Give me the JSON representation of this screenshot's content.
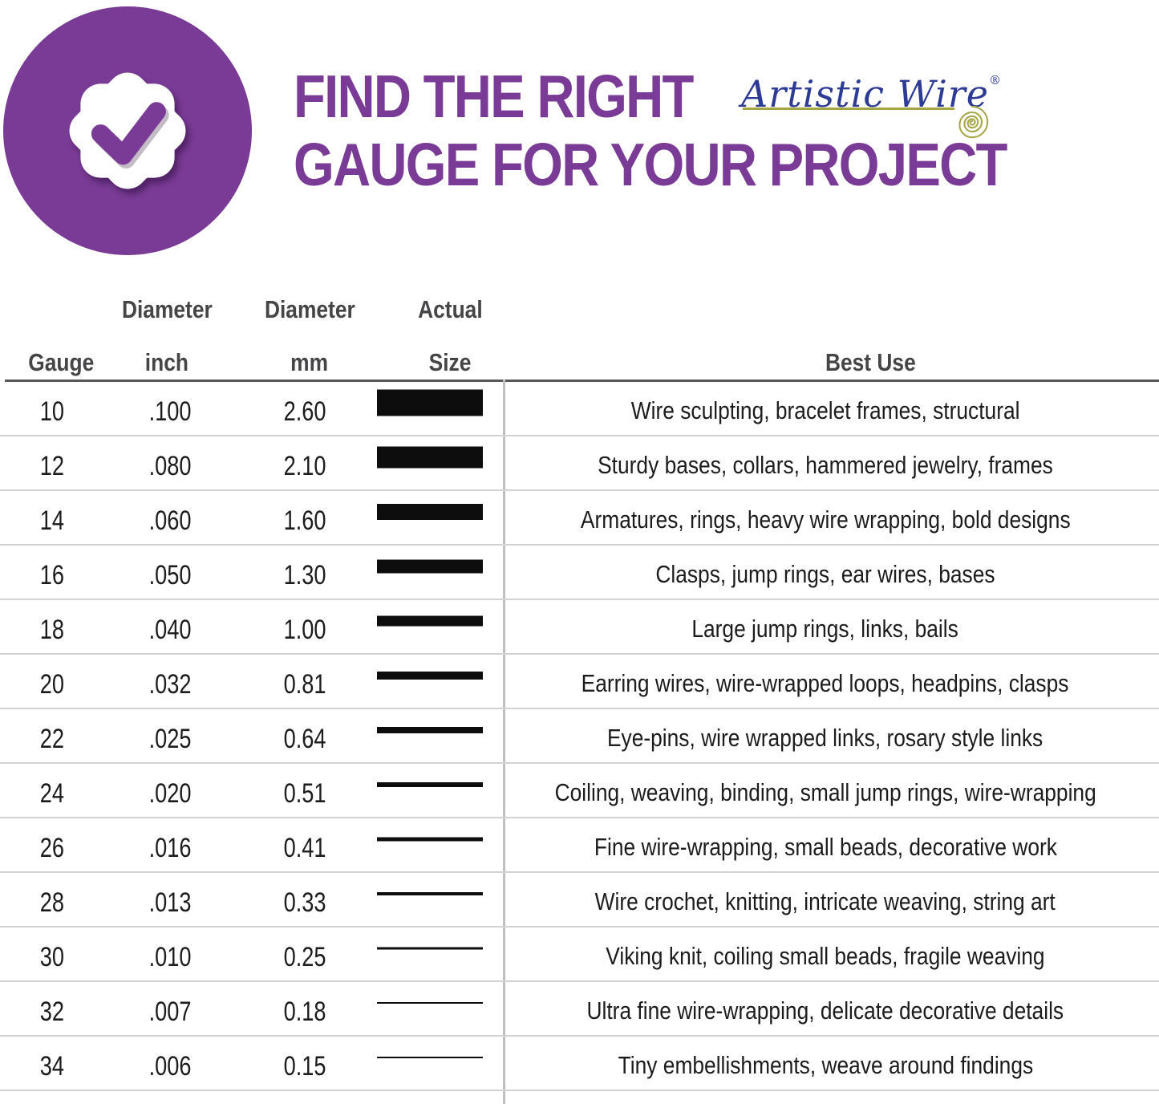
{
  "header": {
    "title_line1": "FIND THE RIGHT",
    "title_line2": "GAUGE FOR YOUR PROJECT",
    "brand": {
      "name": "Artistic Wire",
      "registered_mark": "®"
    },
    "icons": {
      "badge": "verified-checkmark-badge-icon",
      "spiral": "wire-spiral-icon"
    }
  },
  "colors": {
    "purple": "#793b95",
    "brand_blue": "#2e3b94",
    "olive": "#a6a648",
    "ink": "#1c1c1c",
    "head": "#454547",
    "line_dark": "#5a5a5c",
    "line_light": "#d3d3d4",
    "divider": "#bdbfc1",
    "bar": "#0d0d0d"
  },
  "table": {
    "columns": [
      {
        "line1": "",
        "line2": "Gauge"
      },
      {
        "line1": "Diameter",
        "line2": "inch"
      },
      {
        "line1": "Diameter",
        "line2": "mm"
      },
      {
        "line1": "Actual",
        "line2": "Size"
      },
      {
        "line1": "",
        "line2": "Best Use"
      }
    ],
    "rows": [
      {
        "gauge": "10",
        "diameter_inch": ".100",
        "diameter_mm": "2.60",
        "mm_value": 2.6,
        "best_use": "Wire sculpting, bracelet frames, structural"
      },
      {
        "gauge": "12",
        "diameter_inch": ".080",
        "diameter_mm": "2.10",
        "mm_value": 2.1,
        "best_use": "Sturdy bases, collars, hammered jewelry, frames"
      },
      {
        "gauge": "14",
        "diameter_inch": ".060",
        "diameter_mm": "1.60",
        "mm_value": 1.6,
        "best_use": "Armatures, rings, heavy wire wrapping, bold designs"
      },
      {
        "gauge": "16",
        "diameter_inch": ".050",
        "diameter_mm": "1.30",
        "mm_value": 1.3,
        "best_use": "Clasps, jump rings, ear wires, bases"
      },
      {
        "gauge": "18",
        "diameter_inch": ".040",
        "diameter_mm": "1.00",
        "mm_value": 1.0,
        "best_use": "Large jump rings, links, bails"
      },
      {
        "gauge": "20",
        "diameter_inch": ".032",
        "diameter_mm": "0.81",
        "mm_value": 0.81,
        "best_use": "Earring wires, wire-wrapped loops, headpins, clasps"
      },
      {
        "gauge": "22",
        "diameter_inch": ".025",
        "diameter_mm": "0.64",
        "mm_value": 0.64,
        "best_use": "Eye-pins, wire wrapped links, rosary style links"
      },
      {
        "gauge": "24",
        "diameter_inch": ".020",
        "diameter_mm": "0.51",
        "mm_value": 0.51,
        "best_use": "Coiling, weaving, binding, small jump rings, wire-wrapping"
      },
      {
        "gauge": "26",
        "diameter_inch": ".016",
        "diameter_mm": "0.41",
        "mm_value": 0.41,
        "best_use": "Fine wire-wrapping, small beads, decorative work"
      },
      {
        "gauge": "28",
        "diameter_inch": ".013",
        "diameter_mm": "0.33",
        "mm_value": 0.33,
        "best_use": "Wire crochet, knitting, intricate weaving, string art"
      },
      {
        "gauge": "30",
        "diameter_inch": ".010",
        "diameter_mm": "0.25",
        "mm_value": 0.25,
        "best_use": "Viking knit, coiling small beads, fragile weaving"
      },
      {
        "gauge": "32",
        "diameter_inch": ".007",
        "diameter_mm": "0.18",
        "mm_value": 0.18,
        "best_use": "Ultra fine wire-wrapping, delicate decorative details"
      },
      {
        "gauge": "34",
        "diameter_inch": ".006",
        "diameter_mm": "0.15",
        "mm_value": 0.15,
        "best_use": "Tiny embellishments, weave around findings"
      }
    ]
  }
}
